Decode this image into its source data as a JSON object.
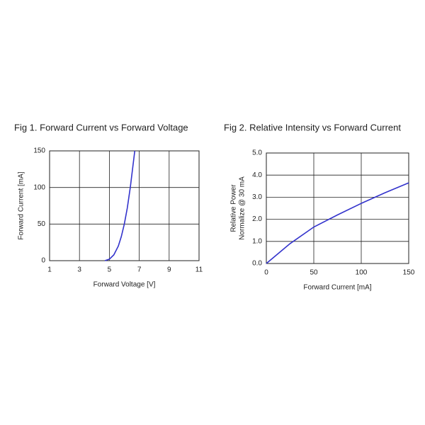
{
  "chart_data": [
    {
      "type": "line",
      "title": "Fig 1. Forward Current vs Forward Voltage",
      "xlabel": "Forward Voltage [V]",
      "ylabel": [
        "Forward Current [mA]"
      ],
      "x": [
        4.7,
        5.0,
        5.3,
        5.6,
        5.8,
        6.0,
        6.2,
        6.4,
        6.55,
        6.7
      ],
      "series": [
        {
          "color": "#3333cc",
          "values": [
            0,
            2,
            8,
            20,
            33,
            50,
            72,
            100,
            125,
            150
          ]
        }
      ],
      "xlim": [
        1,
        11
      ],
      "xticks": [
        1,
        3,
        5,
        7,
        9,
        11
      ],
      "ylim": [
        0,
        150
      ],
      "yticks": [
        0,
        50,
        100,
        150
      ],
      "grid": true
    },
    {
      "type": "line",
      "title": "Fig 2. Relative Intensity vs Forward Current",
      "xlabel": "Forward Current [mA]",
      "ylabel": [
        "Relative Power",
        "Normalize @ 30 mA"
      ],
      "x": [
        0,
        25,
        50,
        75,
        100,
        125,
        150
      ],
      "series": [
        {
          "color": "#3333cc",
          "values": [
            0,
            0.9,
            1.65,
            2.2,
            2.72,
            3.2,
            3.65
          ]
        }
      ],
      "xlim": [
        0,
        150
      ],
      "xticks": [
        0,
        50,
        100,
        150
      ],
      "ylim": [
        0,
        5
      ],
      "yticks": [
        {
          "value": 0,
          "label": "0.0"
        },
        {
          "value": 1,
          "label": "1.0"
        },
        {
          "value": 2,
          "label": "2.0"
        },
        {
          "value": 3,
          "label": "3.0"
        },
        {
          "value": 4,
          "label": "4.0"
        },
        {
          "value": 5,
          "label": "5.0"
        }
      ],
      "grid": true
    }
  ]
}
